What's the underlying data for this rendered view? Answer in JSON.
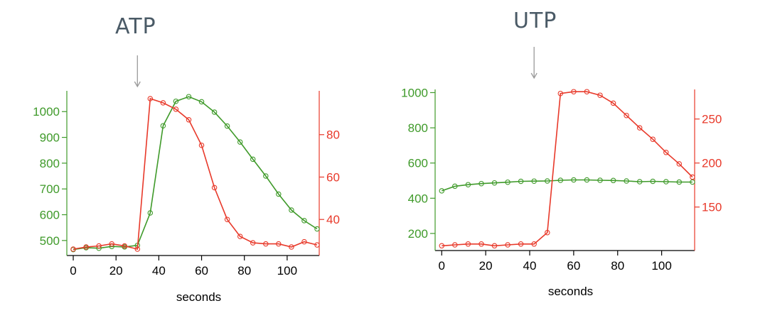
{
  "colors": {
    "green": "#3f9a2a",
    "red": "#e8392a",
    "arrow": "#9a9a9a"
  },
  "chart_data": [
    {
      "type": "line",
      "title": "ATP",
      "xlabel": "seconds",
      "x_ticks": [
        0,
        20,
        40,
        60,
        80,
        100
      ],
      "xlim": [
        -3,
        115
      ],
      "left_axis": {
        "ticks": [
          500,
          600,
          700,
          800,
          900,
          1000
        ],
        "ylim": [
          450,
          1075
        ]
      },
      "right_axis": {
        "ticks": [
          40,
          60,
          80
        ],
        "ylim": [
          24,
          100
        ]
      },
      "arrow_x": 30,
      "series": [
        {
          "axis": "left",
          "color": "#3f9a2a",
          "x": [
            0,
            6,
            12,
            18,
            24,
            30,
            36,
            42,
            48,
            54,
            60,
            66,
            72,
            78,
            84,
            90,
            96,
            102,
            108,
            114
          ],
          "values": [
            465,
            472,
            470,
            477,
            475,
            481,
            607,
            945,
            1040,
            1058,
            1038,
            998,
            944,
            882,
            815,
            750,
            680,
            618,
            577,
            545
          ]
        },
        {
          "axis": "right",
          "color": "#e8392a",
          "x": [
            0,
            6,
            12,
            18,
            24,
            30,
            36,
            42,
            48,
            54,
            60,
            66,
            72,
            78,
            84,
            90,
            96,
            102,
            108,
            114
          ],
          "values": [
            26,
            27,
            27.5,
            28.5,
            27.5,
            26,
            97,
            95,
            92,
            87,
            75,
            55,
            40,
            32,
            29,
            28.5,
            28.5,
            27,
            29.5,
            28
          ]
        }
      ]
    },
    {
      "type": "line",
      "title": "UTP",
      "xlabel": "seconds",
      "x_ticks": [
        0,
        20,
        40,
        60,
        80,
        100
      ],
      "xlim": [
        -3,
        115
      ],
      "left_axis": {
        "ticks": [
          200,
          400,
          600,
          800,
          1000
        ],
        "ylim": [
          115,
          1010
        ]
      },
      "right_axis": {
        "ticks": [
          150,
          200,
          250
        ],
        "ylim": [
          103,
          282
        ]
      },
      "arrow_x": 42,
      "series": [
        {
          "axis": "left",
          "color": "#3f9a2a",
          "x": [
            0,
            6,
            12,
            18,
            24,
            30,
            36,
            42,
            48,
            54,
            60,
            66,
            72,
            78,
            84,
            90,
            96,
            102,
            108,
            114
          ],
          "values": [
            442,
            468,
            477,
            483,
            487,
            491,
            496,
            497,
            498,
            502,
            504,
            504,
            502,
            501,
            498,
            494,
            496,
            494,
            492,
            492
          ]
        },
        {
          "axis": "right",
          "color": "#e8392a",
          "x": [
            0,
            6,
            12,
            18,
            24,
            30,
            36,
            42,
            48,
            54,
            60,
            66,
            72,
            78,
            84,
            90,
            96,
            102,
            108,
            114
          ],
          "values": [
            106,
            107,
            108,
            108,
            106,
            107,
            108,
            108,
            121,
            279,
            281,
            281,
            277,
            268,
            254,
            240,
            227,
            212,
            199,
            184
          ]
        }
      ]
    }
  ]
}
